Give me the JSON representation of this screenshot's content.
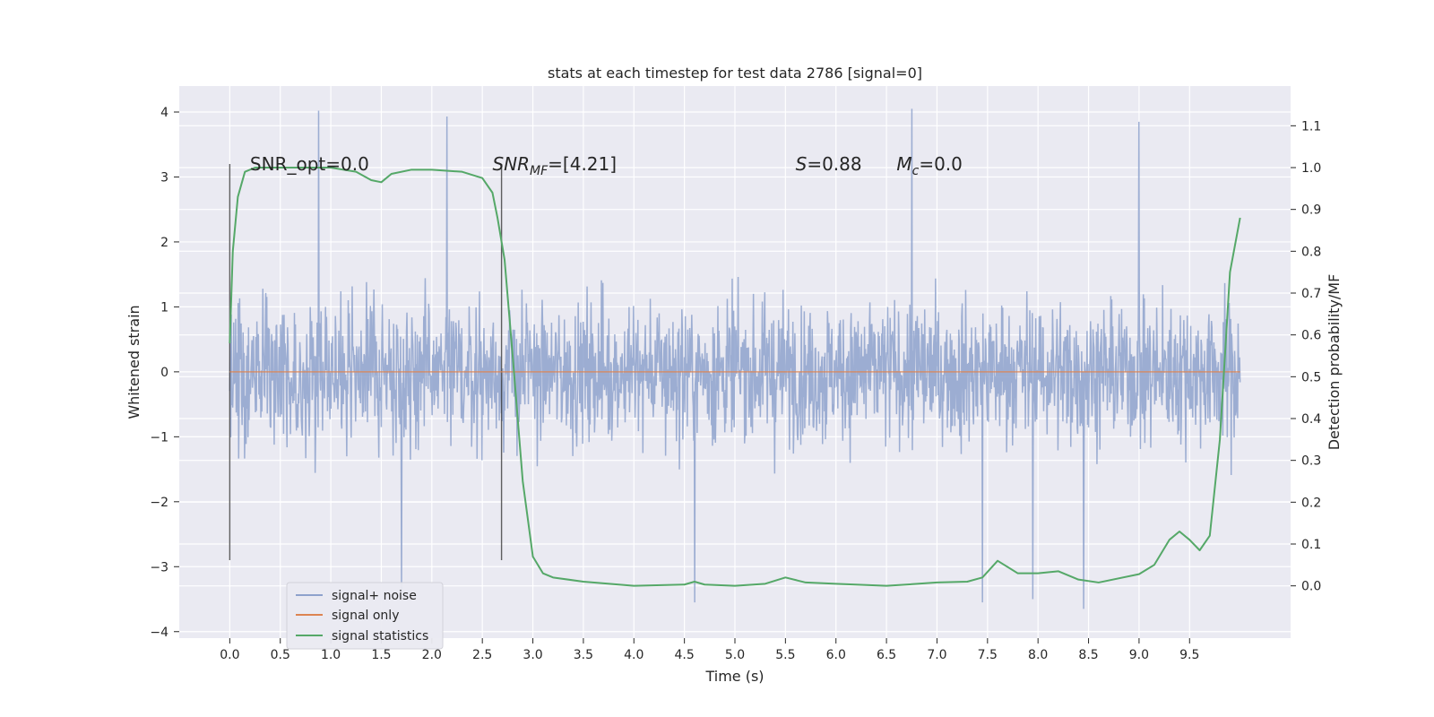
{
  "chart_data": {
    "type": "line",
    "title": "stats at each timestep for test data 2786 [signal=0]",
    "xlabel": "Time (s)",
    "ylabel": "Whitened strain",
    "y2label": "Detection probability/MF",
    "xlim": [
      -0.5,
      10.5
    ],
    "ylim": [
      -4.1,
      4.4
    ],
    "y2lim": [
      -0.125,
      1.195
    ],
    "x_ticks": [
      "0.0",
      "0.5",
      "1.0",
      "1.5",
      "2.0",
      "2.5",
      "3.0",
      "3.5",
      "4.0",
      "4.5",
      "5.0",
      "5.5",
      "6.0",
      "6.5",
      "7.0",
      "7.5",
      "8.0",
      "8.5",
      "9.0",
      "9.5"
    ],
    "x_tick_values": [
      0.0,
      0.5,
      1.0,
      1.5,
      2.0,
      2.5,
      3.0,
      3.5,
      4.0,
      4.5,
      5.0,
      5.5,
      6.0,
      6.5,
      7.0,
      7.5,
      8.0,
      8.5,
      9.0,
      9.5
    ],
    "y_ticks": [
      "4",
      "3",
      "2",
      "1",
      "0",
      "−1",
      "−2",
      "−3",
      "−4"
    ],
    "y_tick_values": [
      4,
      3,
      2,
      1,
      0,
      -1,
      -2,
      -3,
      -4
    ],
    "y2_ticks": [
      "1.1",
      "1.0",
      "0.9",
      "0.8",
      "0.7",
      "0.6",
      "0.5",
      "0.4",
      "0.3",
      "0.2",
      "0.1",
      "0.0"
    ],
    "y2_tick_values": [
      1.1,
      1.0,
      0.9,
      0.8,
      0.7,
      0.6,
      0.5,
      0.4,
      0.3,
      0.2,
      0.1,
      0.0
    ],
    "grid": true,
    "legend_position": "lower-left",
    "series": [
      {
        "name": "signal+ noise",
        "axis": "left",
        "color": "#8ea2cc",
        "style": "dense-noise",
        "x_range": [
          0.0,
          10.0
        ],
        "y_range": [
          -3.6,
          4.05
        ],
        "peaks": [
          [
            0.88,
            4.02
          ],
          [
            2.15,
            3.93
          ],
          [
            6.75,
            4.05
          ],
          [
            9.0,
            3.85
          ],
          [
            1.7,
            -3.4
          ],
          [
            4.6,
            -3.55
          ],
          [
            8.45,
            -3.65
          ],
          [
            7.95,
            -3.5
          ],
          [
            7.45,
            -3.55
          ]
        ]
      },
      {
        "name": "signal only",
        "axis": "left",
        "color": "#dd8452",
        "x": [
          0.0,
          10.0
        ],
        "y": [
          0.0,
          0.0
        ]
      },
      {
        "name": "signal statistics",
        "axis": "right",
        "color": "#55a868",
        "x": [
          0.0,
          0.03,
          0.08,
          0.15,
          0.25,
          0.5,
          1.0,
          1.25,
          1.4,
          1.5,
          1.6,
          1.8,
          2.0,
          2.3,
          2.5,
          2.6,
          2.65,
          2.72,
          2.8,
          2.9,
          3.0,
          3.1,
          3.2,
          3.5,
          4.0,
          4.5,
          4.6,
          4.7,
          5.0,
          5.3,
          5.5,
          5.7,
          6.0,
          6.5,
          7.0,
          7.3,
          7.45,
          7.6,
          7.8,
          8.0,
          8.2,
          8.4,
          8.6,
          9.0,
          9.15,
          9.3,
          9.4,
          9.5,
          9.6,
          9.7,
          9.8,
          9.9,
          10.0
        ],
        "y": [
          0.58,
          0.8,
          0.93,
          0.99,
          1.0,
          1.0,
          1.0,
          0.99,
          0.97,
          0.965,
          0.985,
          0.995,
          0.995,
          0.99,
          0.975,
          0.94,
          0.88,
          0.78,
          0.55,
          0.25,
          0.07,
          0.03,
          0.02,
          0.01,
          0.0,
          0.003,
          0.01,
          0.003,
          0.0,
          0.005,
          0.02,
          0.008,
          0.005,
          0.0,
          0.008,
          0.01,
          0.02,
          0.06,
          0.03,
          0.03,
          0.035,
          0.015,
          0.008,
          0.028,
          0.05,
          0.11,
          0.13,
          0.11,
          0.085,
          0.12,
          0.35,
          0.75,
          0.88
        ]
      }
    ],
    "vlines": [
      0.0,
      2.69
    ],
    "annotations": [
      {
        "text": "SNR_opt=0.0",
        "x": 0.2,
        "y": 3.2
      },
      {
        "text": "SNR",
        "sub": "MF",
        "rest": "=[4.21]",
        "italic": true,
        "x": 2.6,
        "y": 3.2
      },
      {
        "text": "S",
        "rest": "=0.88",
        "italic": true,
        "x": 5.6,
        "y": 3.2
      },
      {
        "text": "M",
        "sub": "c",
        "rest": "=0.0",
        "italic": true,
        "x": 6.6,
        "y": 3.2
      }
    ]
  }
}
